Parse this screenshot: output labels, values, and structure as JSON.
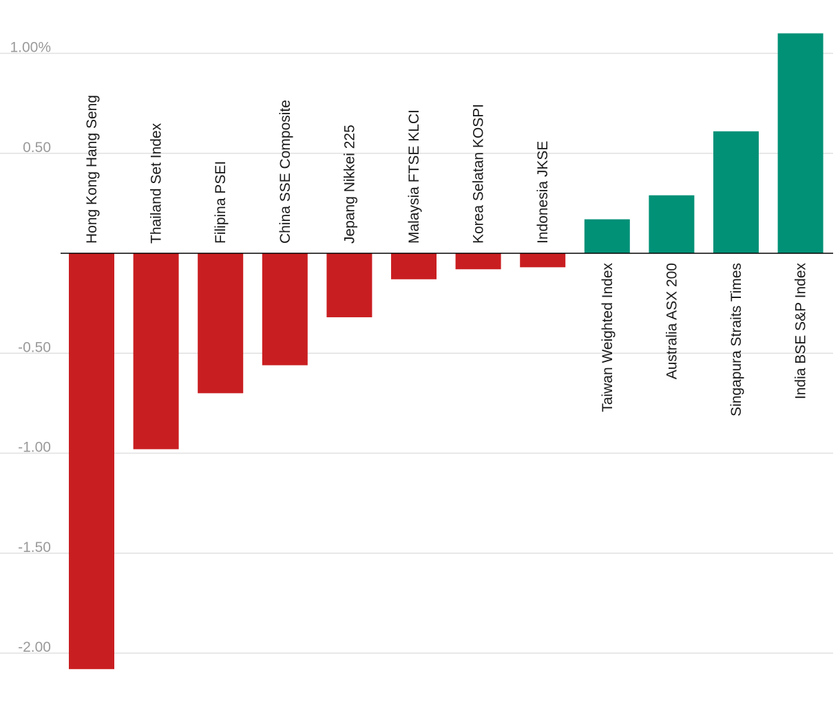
{
  "chart_data": {
    "type": "bar",
    "categories": [
      "Hong Kong Hang Seng",
      "Thailand Set Index",
      "Filipina PSEI",
      "China SSE Composite",
      "Jepang Nikkei 225",
      "Malaysia FTSE KLCI",
      "Korea Selatan KOSPI",
      "Indonesia JKSE",
      "Taiwan Weighted Index",
      "Australia ASX 200",
      "Singapura Straits Times",
      "India BSE S&P Index"
    ],
    "values": [
      -2.08,
      -0.98,
      -0.7,
      -0.56,
      -0.32,
      -0.13,
      -0.08,
      -0.07,
      0.17,
      0.29,
      0.61,
      1.1
    ],
    "yticks": [
      {
        "value": 1.0,
        "label": "1.00%"
      },
      {
        "value": 0.5,
        "label": "0.50"
      },
      {
        "value": -0.5,
        "label": "-0.50"
      },
      {
        "value": -1.0,
        "label": "-1.00"
      },
      {
        "value": -1.5,
        "label": "-1.50"
      },
      {
        "value": -2.0,
        "label": "-2.00"
      }
    ],
    "ylim": [
      -2.1,
      1.1
    ],
    "grid": true,
    "colors": {
      "negative": "#c91e21",
      "positive": "#009177"
    }
  }
}
